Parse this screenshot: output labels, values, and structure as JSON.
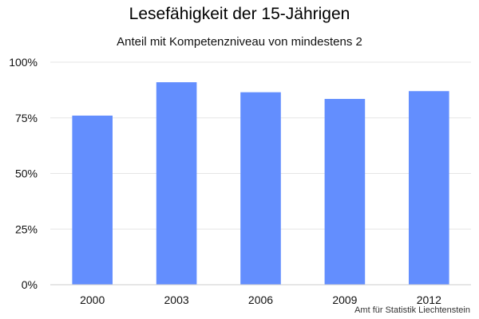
{
  "chart_data": {
    "type": "bar",
    "title": "Lesefähigkeit der 15-Jährigen",
    "subtitle": "Anteil mit Kompetenzniveau von mindestens 2",
    "categories": [
      "2000",
      "2003",
      "2006",
      "2009",
      "2012"
    ],
    "values": [
      76,
      91,
      86.5,
      83.5,
      87
    ],
    "ylim": [
      0,
      100
    ],
    "yticks": [
      0,
      25,
      50,
      75,
      100
    ],
    "ytick_labels": [
      "0%",
      "25%",
      "50%",
      "75%",
      "100%"
    ],
    "xlabel": "",
    "ylabel": "",
    "grid": true,
    "legend": "none",
    "bar_color": "#638efe",
    "gridline_color": "#e6e6e6",
    "axis_color": "#cccccc"
  },
  "footer": {
    "source": "Amt für Statistik Liechtenstein"
  }
}
